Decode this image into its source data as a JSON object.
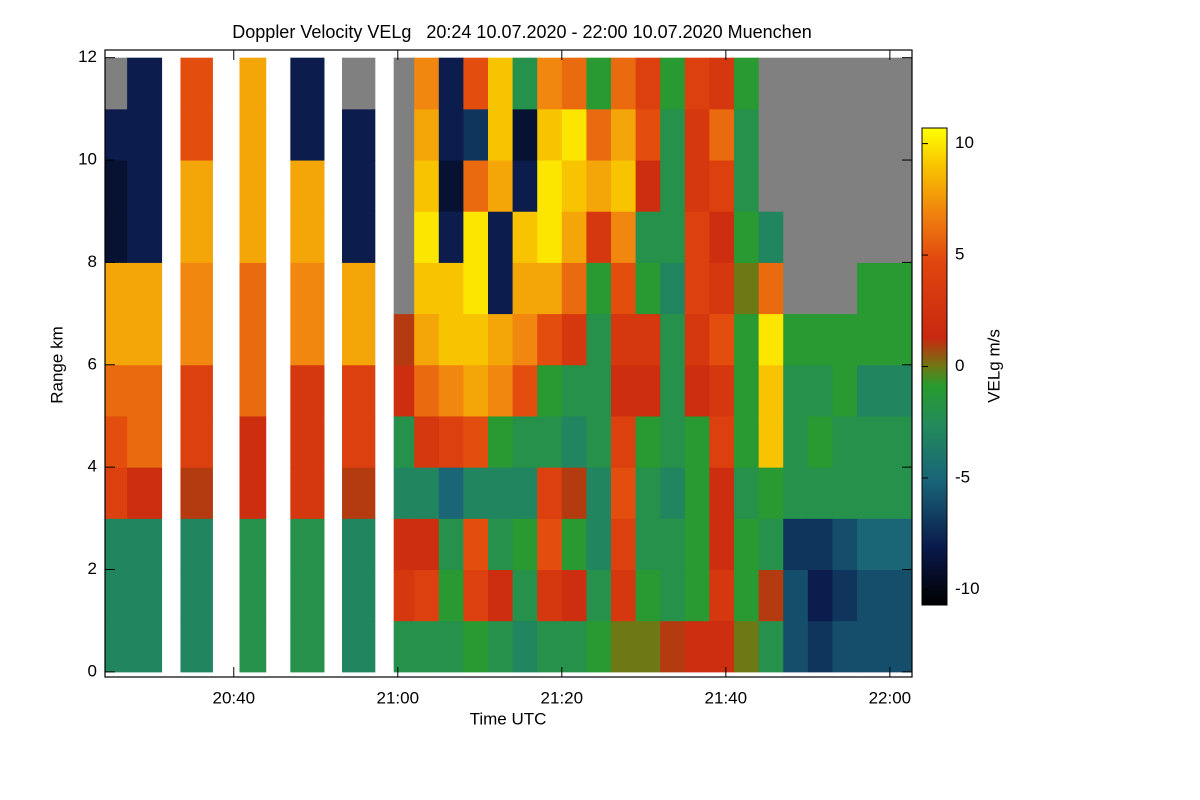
{
  "chart_data": {
    "type": "heatmap",
    "title": "Doppler Velocity VELg   20:24 10.07.2020 - 22:00 10.07.2020 Muenchen",
    "x_label": "Time UTC",
    "y_label": "Range km",
    "colorbar_label": "VELg m/s",
    "xlim": [
      1224.3,
      1322.7
    ],
    "xticks": [
      {
        "value": 1240,
        "label": "20:40"
      },
      {
        "value": 1260,
        "label": "21:00"
      },
      {
        "value": 1280,
        "label": "21:20"
      },
      {
        "value": 1300,
        "label": "21:40"
      },
      {
        "value": 1320,
        "label": "22:00"
      }
    ],
    "ylim": [
      -0.1,
      12.15
    ],
    "yticks": [
      0,
      2,
      4,
      6,
      8,
      10,
      12
    ],
    "clim": [
      -10.7,
      10.7
    ],
    "cticks": [
      -10,
      -5,
      0,
      5,
      10
    ],
    "xbins": [
      1224,
      1227,
      1231.2,
      1233.5,
      1237.4,
      1240.7,
      1243.9,
      1246.9,
      1251,
      1253.2,
      1257.2,
      1259.5,
      1262,
      1265,
      1268,
      1271,
      1274,
      1277,
      1280,
      1283,
      1286,
      1289,
      1292,
      1295,
      1298,
      1301,
      1304,
      1307,
      1310,
      1313,
      1316,
      1322.7
    ],
    "ybins": [
      0,
      1,
      2,
      3,
      4,
      5,
      6,
      7,
      8,
      9,
      10,
      11,
      12
    ],
    "values": [
      [
        -3,
        -3,
        -3,
        4,
        5,
        6,
        8,
        8,
        -9,
        -9,
        -8,
        null
      ],
      [
        -3,
        -3,
        -3,
        2,
        6,
        6,
        8,
        8,
        -8,
        -8,
        -8,
        -8
      ],
      [
        null,
        null,
        null,
        null,
        null,
        null,
        null,
        null,
        null,
        null,
        null,
        null
      ],
      [
        -3,
        -3,
        -3,
        1,
        4,
        4,
        7,
        7,
        8,
        8,
        5,
        5
      ],
      [
        null,
        null,
        null,
        null,
        null,
        null,
        null,
        null,
        null,
        null,
        null,
        null
      ],
      [
        -2,
        -2,
        -2,
        2,
        2,
        6,
        6,
        6,
        8,
        8,
        8,
        8
      ],
      [
        null,
        null,
        null,
        null,
        null,
        null,
        null,
        null,
        null,
        null,
        null,
        null
      ],
      [
        -2,
        -2,
        -2,
        3,
        3,
        3,
        7,
        7,
        8,
        8,
        -8,
        -8
      ],
      [
        null,
        null,
        null,
        null,
        null,
        null,
        null,
        null,
        null,
        null,
        null,
        null
      ],
      [
        -3,
        -3,
        -3,
        1,
        4,
        4,
        8,
        8,
        -8,
        -8,
        -8,
        null
      ],
      [
        null,
        null,
        null,
        null,
        null,
        null,
        null,
        null,
        null,
        null,
        null,
        null
      ],
      [
        -2,
        3,
        2,
        -3,
        -2,
        2,
        1,
        null,
        null,
        null,
        null,
        null
      ],
      [
        -2,
        4,
        2,
        -3,
        3,
        6,
        8,
        9,
        10,
        9,
        8,
        7
      ],
      [
        -2,
        -1,
        -2,
        -5,
        4,
        7,
        9,
        9,
        -8,
        -9,
        -8,
        -8
      ],
      [
        -1,
        4,
        5,
        -3,
        5,
        8,
        9,
        10,
        10,
        6,
        -7,
        5
      ],
      [
        -2,
        2,
        -2,
        -3,
        -1,
        7,
        8,
        -8,
        -8,
        8,
        9,
        9
      ],
      [
        -3,
        -2,
        -1,
        -3,
        -2,
        5,
        7,
        8,
        9,
        -8,
        -9,
        -2
      ],
      [
        -2,
        3,
        5,
        4,
        -2,
        -1,
        5,
        8,
        10,
        10,
        9,
        7
      ],
      [
        -2,
        2,
        -1,
        1,
        -3,
        -2,
        3,
        6,
        8,
        9,
        10,
        6
      ],
      [
        -1,
        -2,
        -3,
        -3,
        -2,
        -2,
        -2,
        -1,
        3,
        8,
        6,
        -1
      ],
      [
        0,
        3,
        4,
        5,
        4,
        2,
        3,
        5,
        7,
        9,
        8,
        6
      ],
      [
        0,
        -1,
        -2,
        -2,
        -1,
        2,
        3,
        -1,
        -2,
        2,
        5,
        4
      ],
      [
        1,
        -2,
        -2,
        -3,
        -2,
        -2,
        -2,
        -3,
        -2,
        -2,
        -2,
        -1
      ],
      [
        2,
        -1,
        -1,
        -1,
        -1,
        2,
        3,
        4,
        4,
        3,
        3,
        4
      ],
      [
        2,
        3,
        2,
        2,
        4,
        3,
        5,
        3,
        2,
        4,
        6,
        3
      ],
      [
        0,
        -1,
        -1,
        -2,
        -1,
        -1,
        -1,
        0,
        -1,
        -2,
        -2,
        -1
      ],
      [
        -2,
        1,
        -2,
        -1,
        9,
        9,
        10,
        6,
        -3,
        null,
        null,
        null
      ],
      [
        -6,
        -6,
        -7,
        -2,
        -2,
        -2,
        -1,
        null,
        null,
        null,
        null,
        null
      ],
      [
        -7,
        -8,
        -7,
        -2,
        -1,
        -2,
        -1,
        null,
        null,
        null,
        null,
        null
      ],
      [
        -6,
        -7,
        -6,
        -2,
        -2,
        -1,
        -1,
        null,
        null,
        null,
        null,
        null
      ],
      [
        -6,
        -6,
        -5,
        -2,
        -2,
        -3,
        -1,
        -1,
        null,
        null,
        null,
        null
      ]
    ]
  }
}
